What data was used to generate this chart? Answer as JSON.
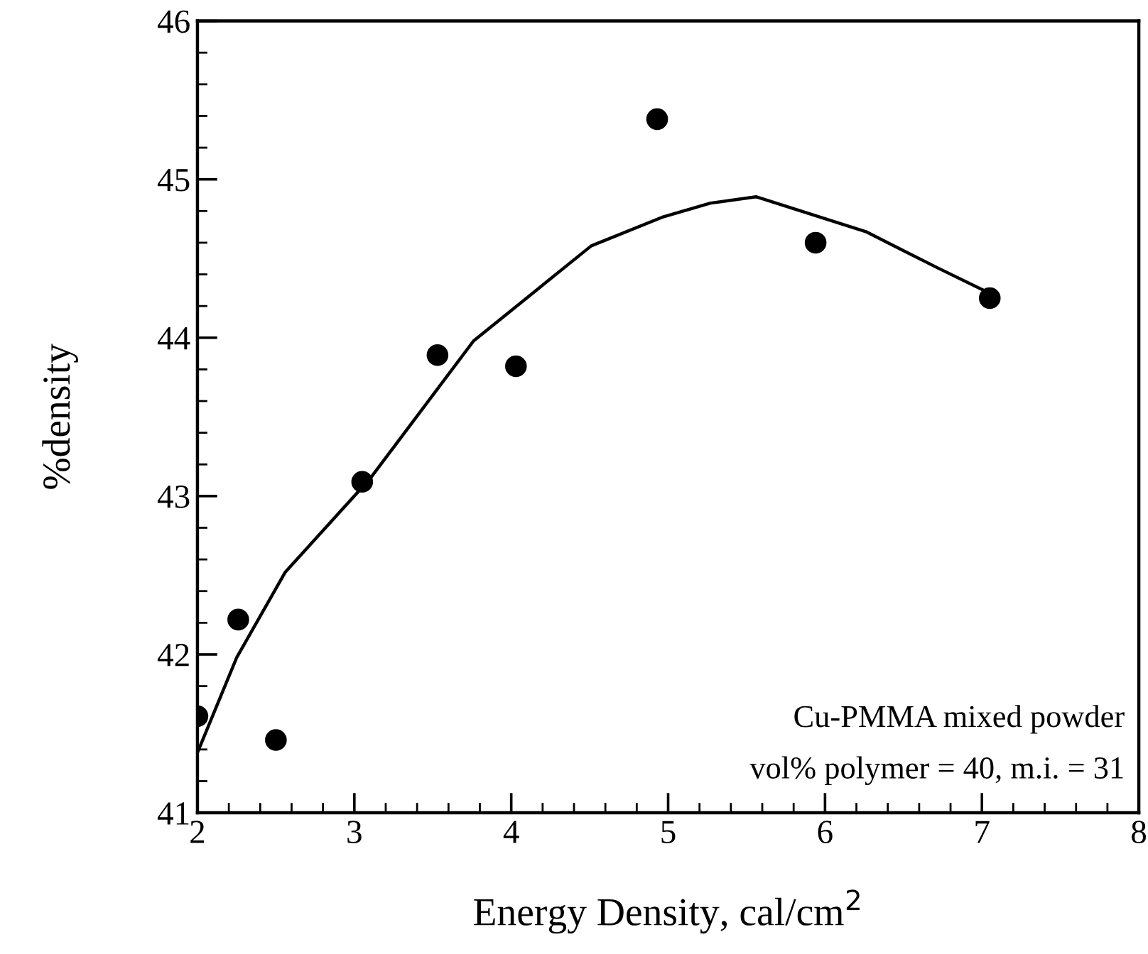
{
  "chart_data": {
    "type": "scatter",
    "xlabel": "Energy Density, cal/cm$^{2}$",
    "ylabel": "%density",
    "x": [
      2.0,
      2.26,
      2.5,
      3.05,
      3.53,
      4.03,
      4.93,
      5.94,
      7.05
    ],
    "series": [
      {
        "color": "#000000",
        "marker": "circle",
        "values": [
          41.61,
          42.22,
          41.46,
          43.09,
          43.89,
          43.82,
          45.38,
          44.6,
          44.25
        ]
      },
      {
        "type": "line",
        "color": "#000000",
        "line_style": "solid",
        "x": [
          2.0,
          2.25,
          2.56,
          3.1,
          3.76,
          4.51,
          4.96,
          5.27,
          5.56,
          6.26,
          6.72,
          7.03
        ],
        "values": [
          41.38,
          41.98,
          42.52,
          43.11,
          43.98,
          44.58,
          44.76,
          44.85,
          44.89,
          44.67,
          44.44,
          44.29
        ]
      }
    ],
    "xlim": [
      2,
      8
    ],
    "xticks": [
      2,
      3,
      4,
      5,
      6,
      7,
      8
    ],
    "ylim": [
      41,
      46
    ],
    "yticks": [
      41,
      42,
      43,
      44,
      45,
      46
    ],
    "grid": false,
    "annotations": [
      "Cu-PMMA mixed powder",
      "vol% polymer = 40, m.i. = 31"
    ]
  }
}
